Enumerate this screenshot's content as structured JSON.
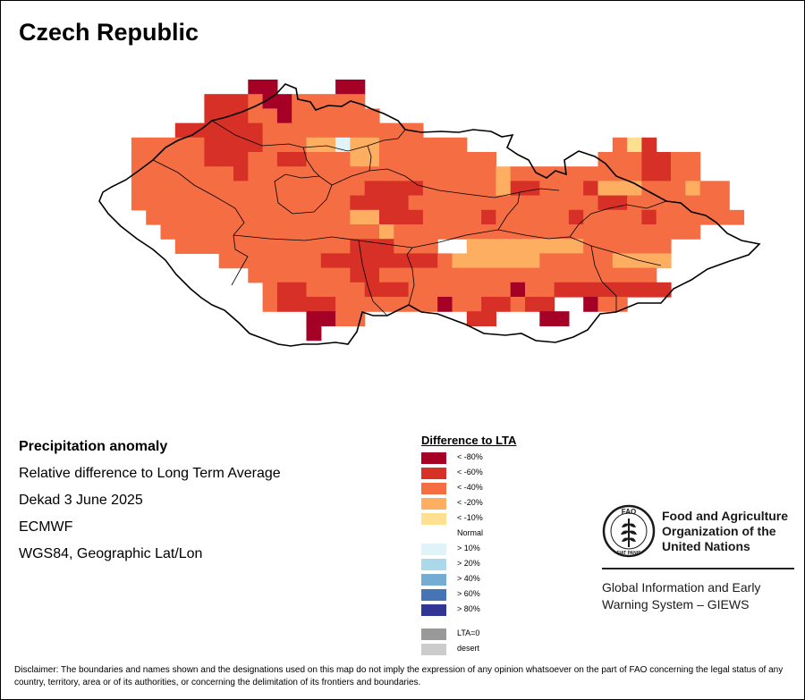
{
  "map": {
    "title": "Czech Republic",
    "palette": {
      "r80": "#A50026",
      "r60": "#D73027",
      "r40": "#F46D43",
      "r20": "#FDAE61",
      "r10": "#FEE090",
      "normal": "#FFFFFF",
      "b10": "#E0F3F8"
    },
    "grid_rows": [
      "...........ii....ii.............................",
      "........ooopiiggggg.............................",
      "........oooppiggggff............................",
      "......oooooopppgfffffff.........................",
      "...fffccoooopppnnynnpppprr..........cwo.........",
      "...fffccoooppoopppnnrrrrrrrr.......cccoocc......",
      "...fcccccgopppppppppgggggggrqccccccccgoorr......",
      "...pcccccffppppppppooooppprrqooccfoqqqrrrqpp....",
      "...cccccfffpppppppooooppppcrrrrrgffoorrfffpr....",
      "....ccccffffppppppnnoooppppbgggggbggccorrrrrc...",
      ".....fffgffpppppppggngggggggggggggggcfpcgg......",
      "......fffppppppcccoooggg..qqqqqqqqrrrrrr........",
      ".........ggcccccvvooovvvcqqqqqqrrrrrqqqq........",
      "...........cccccccoorrrrrrrrccrrrrrrrrr.........",
      "............cooccggooocffgggfjccoooooooo........",
      "............ceeeeffrrrggtccooroo..sgg...........",
      "...............iiff.......oo...tt...............",
      "...............i......................."
    ],
    "cell_codes": {
      "i": "r80",
      "o": "r60",
      "p": "r40",
      "g": "r40",
      "f": "r40",
      "c": "r40",
      "n": "r20",
      "y": "b10",
      "r": "r40",
      "q": "r20",
      "w": "r10",
      "b": "r60",
      "e": "r60",
      "v": "r60",
      "j": "r80",
      "s": "r80",
      "t": "r80",
      "k": "r80"
    }
  },
  "info": {
    "heading": "Precipitation anomaly",
    "line1": "Relative difference to Long Term Average",
    "line2": "Dekad 3 June 2025",
    "line3": "ECMWF",
    "line4": "WGS84, Geographic Lat/Lon"
  },
  "legend": {
    "title": "Difference to LTA",
    "items": [
      {
        "label": "< -80%",
        "color": "#A50026"
      },
      {
        "label": "< -60%",
        "color": "#D73027"
      },
      {
        "label": "< -40%",
        "color": "#F46D43"
      },
      {
        "label": "< -20%",
        "color": "#FDAE61"
      },
      {
        "label": "< -10%",
        "color": "#FEE090"
      },
      {
        "label": "Normal",
        "color": "#FFFFFF"
      },
      {
        "label": "> 10%",
        "color": "#E0F3F8"
      },
      {
        "label": "> 20%",
        "color": "#ABD9E9"
      },
      {
        "label": "> 40%",
        "color": "#74ADD1"
      },
      {
        "label": "> 60%",
        "color": "#4575B4"
      },
      {
        "label": "> 80%",
        "color": "#313695"
      }
    ],
    "extra": [
      {
        "label": "LTA=0",
        "color": "#999999"
      },
      {
        "label": "desert",
        "color": "#CCCCCC"
      }
    ]
  },
  "branding": {
    "fao_line1": "Food and Agriculture",
    "fao_line2": "Organization of the",
    "fao_line3": "United Nations",
    "giews_line1": "Global Information and Early",
    "giews_line2": "Warning System – GIEWS",
    "logo_top": "FAO",
    "logo_bottom": "FIAT PANIS"
  },
  "disclaimer": "Disclaimer: The boundaries and names shown and the designations used on this map do not imply the expression of any opinion whatsoever on the part of FAO concerning the legal status of any country, territory, area or of its authorities, or concerning the delimitation of its frontiers and boundaries."
}
